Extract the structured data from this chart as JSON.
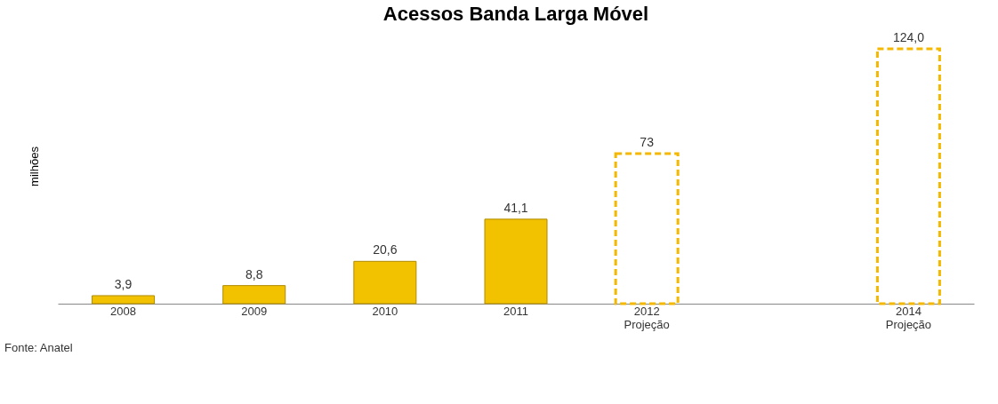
{
  "chart_data": {
    "type": "bar",
    "title": "Acessos Banda Larga Móvel",
    "ylabel": "milhões",
    "categories": [
      "2008",
      "2009",
      "2010",
      "2011",
      "2012\nProjeção",
      null,
      "2014\nProjeção"
    ],
    "series": [
      {
        "color": "#f2c200",
        "line_style": "solid",
        "values": [
          3.9,
          8.8,
          20.6,
          41.1,
          null,
          null,
          null
        ],
        "value_labels": [
          "3,9",
          "8,8",
          "20,6",
          "41,1",
          null,
          null,
          null
        ]
      },
      {
        "color": "#f5b800",
        "line_style": "dashed",
        "values": [
          null,
          null,
          null,
          null,
          73,
          null,
          124.0
        ],
        "value_labels": [
          null,
          null,
          null,
          null,
          "73",
          null,
          "124,0"
        ]
      }
    ],
    "tick_labels": "x",
    "grid": false,
    "annotations": [
      "Fonte: Anatel"
    ]
  }
}
